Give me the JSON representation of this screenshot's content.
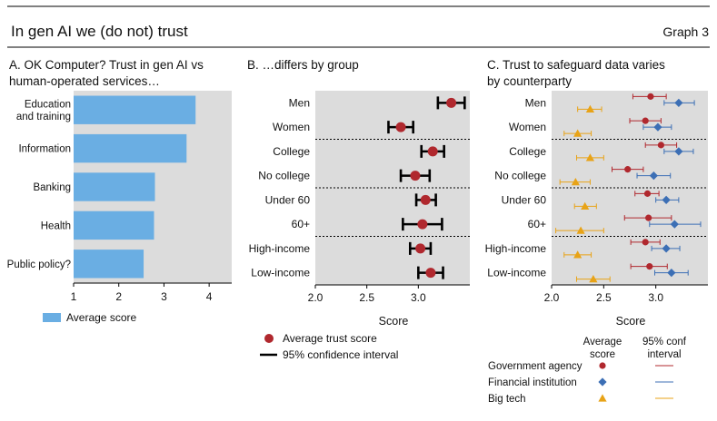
{
  "header": {
    "title": "In gen AI we (do not) trust",
    "graph_label": "Graph 3"
  },
  "colors": {
    "panel_bg": "#dcdcdc",
    "bar": "#6aaee3",
    "trust_point": "#b0282e",
    "government": "#b0282e",
    "financial": "#3c6fb5",
    "bigtech": "#e8a317"
  },
  "chart_data": [
    {
      "type": "bar",
      "orientation": "horizontal",
      "title": "A. OK Computer? Trust in gen AI vs human-operated services…",
      "categories": [
        "Education and training",
        "Information",
        "Banking",
        "Health",
        "Public policy?"
      ],
      "category_lines": [
        [
          "Education",
          "and training"
        ],
        [
          "Information"
        ],
        [
          "Banking"
        ],
        [
          "Health"
        ],
        [
          "Public policy?"
        ]
      ],
      "values": [
        3.7,
        3.5,
        2.8,
        2.78,
        2.55
      ],
      "xlim": [
        1,
        4.5
      ],
      "xticks": [
        "1",
        "2",
        "3",
        "4"
      ],
      "legend": [
        {
          "label": "Average score"
        }
      ],
      "grid": false
    },
    {
      "type": "scatter",
      "subtype": "dot-with-error-bars",
      "title": "B. …differs by group",
      "xlabel": "Score",
      "xlim": [
        2.0,
        3.5
      ],
      "xticks": [
        "2.0",
        "2.5",
        "3.0"
      ],
      "categories": [
        "Men",
        "Women",
        "College",
        "No college",
        "Under 60",
        "60+",
        "High-income",
        "Low-income"
      ],
      "series": [
        {
          "name": "Average trust score",
          "values": [
            3.32,
            2.83,
            3.14,
            2.97,
            3.07,
            3.04,
            3.02,
            3.12
          ],
          "ci_low": [
            3.19,
            2.71,
            3.03,
            2.83,
            2.98,
            2.85,
            2.92,
            3.0
          ],
          "ci_high": [
            3.45,
            2.95,
            3.25,
            3.11,
            3.17,
            3.23,
            3.12,
            3.24
          ]
        }
      ],
      "separators_after": [
        1,
        3,
        5
      ],
      "legend": [
        {
          "label": "Average trust score"
        },
        {
          "label": "95% confidence interval"
        }
      ]
    },
    {
      "type": "scatter",
      "subtype": "dot-with-error-bars",
      "title": "C. Trust to safeguard data varies by counterparty",
      "xlabel": "Score",
      "xlim": [
        2.0,
        3.5
      ],
      "xticks": [
        "2.0",
        "2.5",
        "3.0"
      ],
      "categories": [
        "Men",
        "Women",
        "College",
        "No college",
        "Under 60",
        "60+",
        "High-income",
        "Low-income"
      ],
      "series": [
        {
          "name": "Government agency",
          "values": [
            2.95,
            2.9,
            3.05,
            2.73,
            2.92,
            2.93,
            2.9,
            2.94
          ],
          "ci_low": [
            2.78,
            2.75,
            2.9,
            2.58,
            2.8,
            2.7,
            2.76,
            2.76
          ],
          "ci_high": [
            3.1,
            3.05,
            3.2,
            2.88,
            3.03,
            3.15,
            3.04,
            3.11
          ]
        },
        {
          "name": "Financial institution",
          "values": [
            3.22,
            3.02,
            3.22,
            2.98,
            3.1,
            3.18,
            3.1,
            3.15
          ],
          "ci_low": [
            3.08,
            2.88,
            3.08,
            2.82,
            3.0,
            2.94,
            2.96,
            2.99
          ],
          "ci_high": [
            3.37,
            3.15,
            3.36,
            3.14,
            3.22,
            3.43,
            3.23,
            3.31
          ]
        },
        {
          "name": "Big tech",
          "values": [
            2.37,
            2.25,
            2.37,
            2.23,
            2.32,
            2.28,
            2.25,
            2.4
          ],
          "ci_low": [
            2.25,
            2.12,
            2.24,
            2.08,
            2.22,
            2.04,
            2.12,
            2.24
          ],
          "ci_high": [
            2.48,
            2.38,
            2.5,
            2.37,
            2.43,
            2.5,
            2.38,
            2.56
          ]
        }
      ],
      "legend_headers": [
        "Average score",
        "95% conf interval"
      ],
      "legend": [
        {
          "label": "Government agency"
        },
        {
          "label": "Financial institution"
        },
        {
          "label": "Big tech"
        }
      ]
    }
  ]
}
